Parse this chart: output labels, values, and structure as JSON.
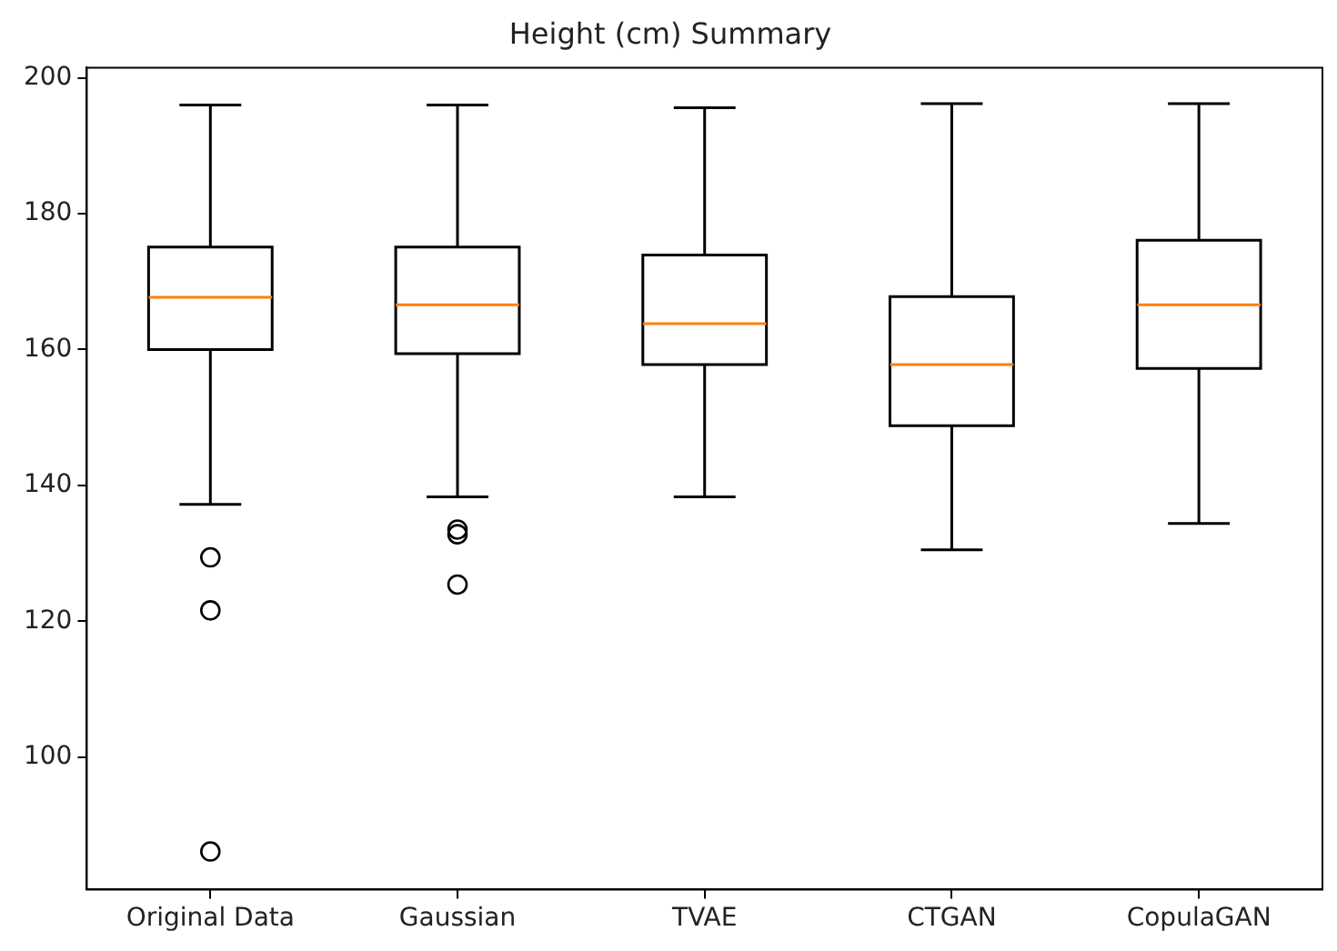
{
  "chart_data": {
    "type": "box",
    "title": "Height (cm) Summary",
    "categories": [
      "Original Data",
      "Gaussian",
      "TVAE",
      "CTGAN",
      "CopulaGAN"
    ],
    "boxes": [
      {
        "low": 137.2,
        "q1": 160.0,
        "median": 167.7,
        "q3": 175.1,
        "high": 196.0,
        "outliers": [
          129.4,
          121.6,
          86.1
        ]
      },
      {
        "low": 138.3,
        "q1": 159.4,
        "median": 166.6,
        "q3": 175.1,
        "high": 196.0,
        "outliers": [
          133.5,
          132.8,
          125.4
        ]
      },
      {
        "low": 138.3,
        "q1": 157.8,
        "median": 163.8,
        "q3": 173.9,
        "high": 195.6
      },
      {
        "low": 130.5,
        "q1": 148.8,
        "median": 157.8,
        "q3": 167.8,
        "high": 196.2
      },
      {
        "low": 134.4,
        "q1": 157.2,
        "median": 166.6,
        "q3": 176.1,
        "high": 196.2
      }
    ],
    "color": "#000000",
    "ylim": [
      80.5,
      201.5
    ],
    "yticks": [
      100,
      120,
      140,
      160,
      180,
      200
    ],
    "grid": false,
    "legend": false,
    "marker": "circle"
  }
}
